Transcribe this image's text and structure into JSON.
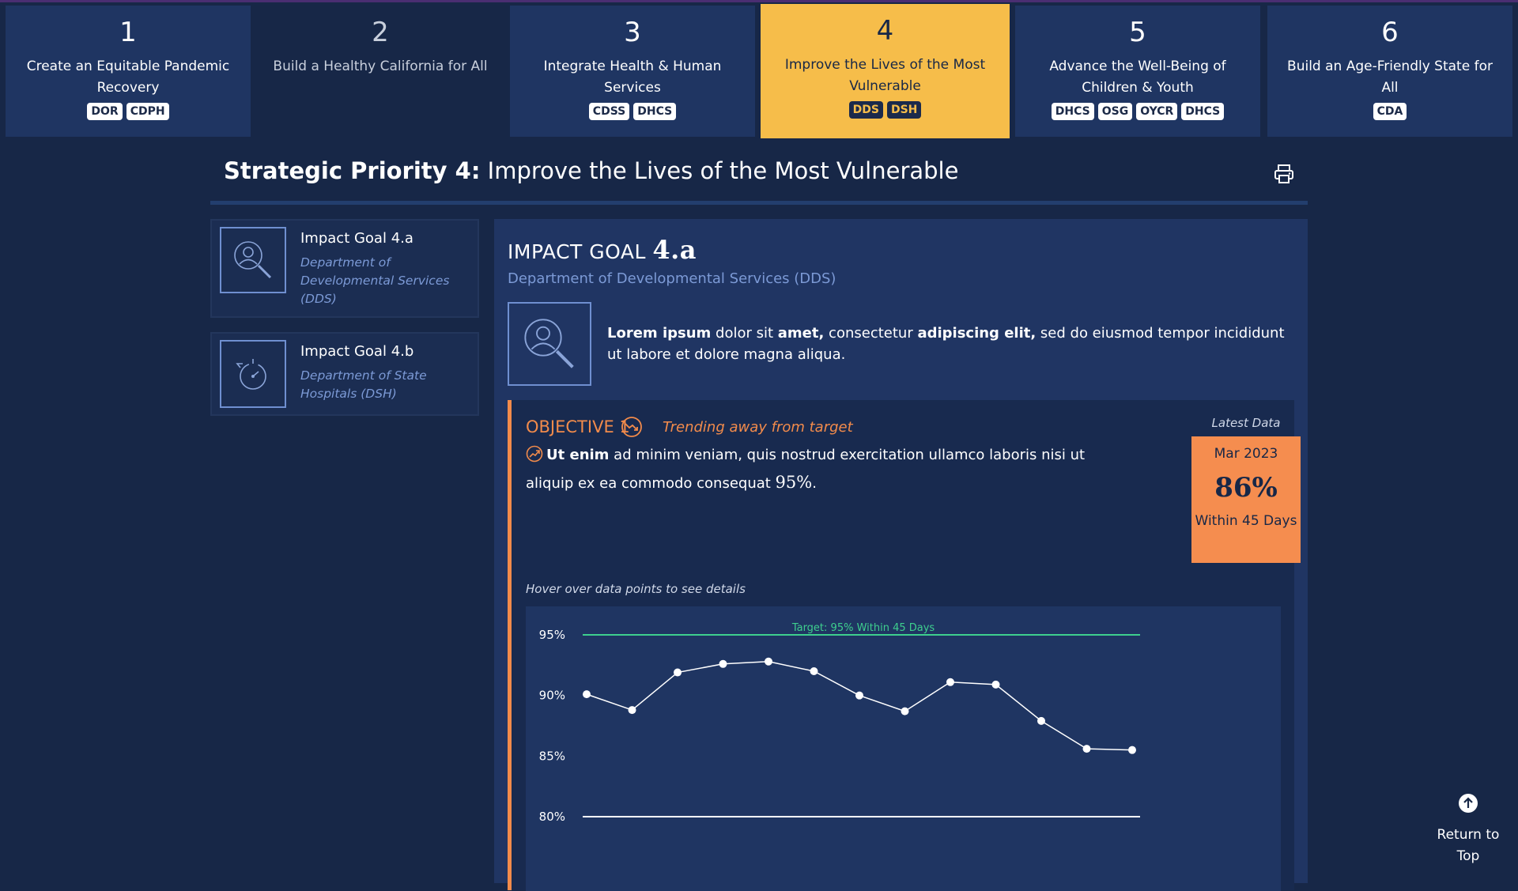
{
  "tabs": [
    {
      "number": "1",
      "title": "Create an Equitable Pandemic Recovery",
      "badges": [
        "DOR",
        "CDPH"
      ]
    },
    {
      "number": "2",
      "title": "Build a Healthy California for All",
      "badges": []
    },
    {
      "number": "3",
      "title": "Integrate Health & Human Services",
      "badges": [
        "CDSS",
        "DHCS"
      ]
    },
    {
      "number": "4",
      "title": "Improve the Lives of the Most Vulnerable",
      "badges": [
        "DDS",
        "DSH"
      ]
    },
    {
      "number": "5",
      "title": "Advance the Well-Being of Children & Youth",
      "badges": [
        "DHCS",
        "OSG",
        "OYCR",
        "DHCS"
      ]
    },
    {
      "number": "6",
      "title": "Build an Age-Friendly State for All",
      "badges": [
        "CDA"
      ]
    }
  ],
  "colors": {
    "background": "#172747",
    "tab": "#1f3562",
    "active_tab": "#f6bd4a",
    "accent_orange": "#f28b4b",
    "target_green": "#3ecf8e",
    "muted_blue": "#7c9ad6"
  },
  "header": {
    "prefix": "Strategic Priority 4:",
    "title": "Improve the Lives of the Most Vulnerable",
    "print_icon": "printer-icon"
  },
  "goals": [
    {
      "name": "Impact Goal 4.a",
      "dept": "Department of Developmental Services (DDS)",
      "icon": "person-search-icon"
    },
    {
      "name": "Impact Goal 4.b",
      "dept": "Department of State Hospitals (DSH)",
      "icon": "timer-cycle-icon"
    }
  ],
  "impact_goal": {
    "label": "IMPACT GOAL",
    "number": "4.a",
    "dept": "Department of Developmental Services (DDS)",
    "desc_parts": [
      "Lorem ipsum",
      " dolor sit ",
      "amet,",
      " consectetur ",
      "adipiscing elit,",
      " sed do eiusmod tempor incididunt ut labore et dolore magna aliqua."
    ]
  },
  "objective": {
    "title": "OBJECTIVE 1",
    "trend": "Trending away from target",
    "desc_bold": "Ut enim",
    "desc_rest": " ad minim veniam, quis nostrud exercitation ullamco laboris nisi ut aliquip ex ea commodo consequat ",
    "desc_value": "95%",
    "desc_end": ".",
    "latest_label": "Latest Data",
    "latest_date": "Mar 2023",
    "latest_value": "86%",
    "latest_caption": "Within 45 Days",
    "hover_hint": "Hover over data points to see details"
  },
  "chart_data": {
    "type": "line",
    "ylim": [
      80,
      95
    ],
    "y_ticks": [
      "95%",
      "90%",
      "85%",
      "80%"
    ],
    "target": {
      "value": 95,
      "label": "Target: 95% Within 45 Days"
    },
    "series": [
      {
        "values": [
          90.1,
          88.8,
          91.9,
          92.6,
          92.8,
          92.0,
          90.0,
          88.7,
          91.1,
          90.9,
          87.9,
          85.6,
          85.5
        ]
      }
    ]
  },
  "return_top": {
    "label": "Return to Top"
  }
}
